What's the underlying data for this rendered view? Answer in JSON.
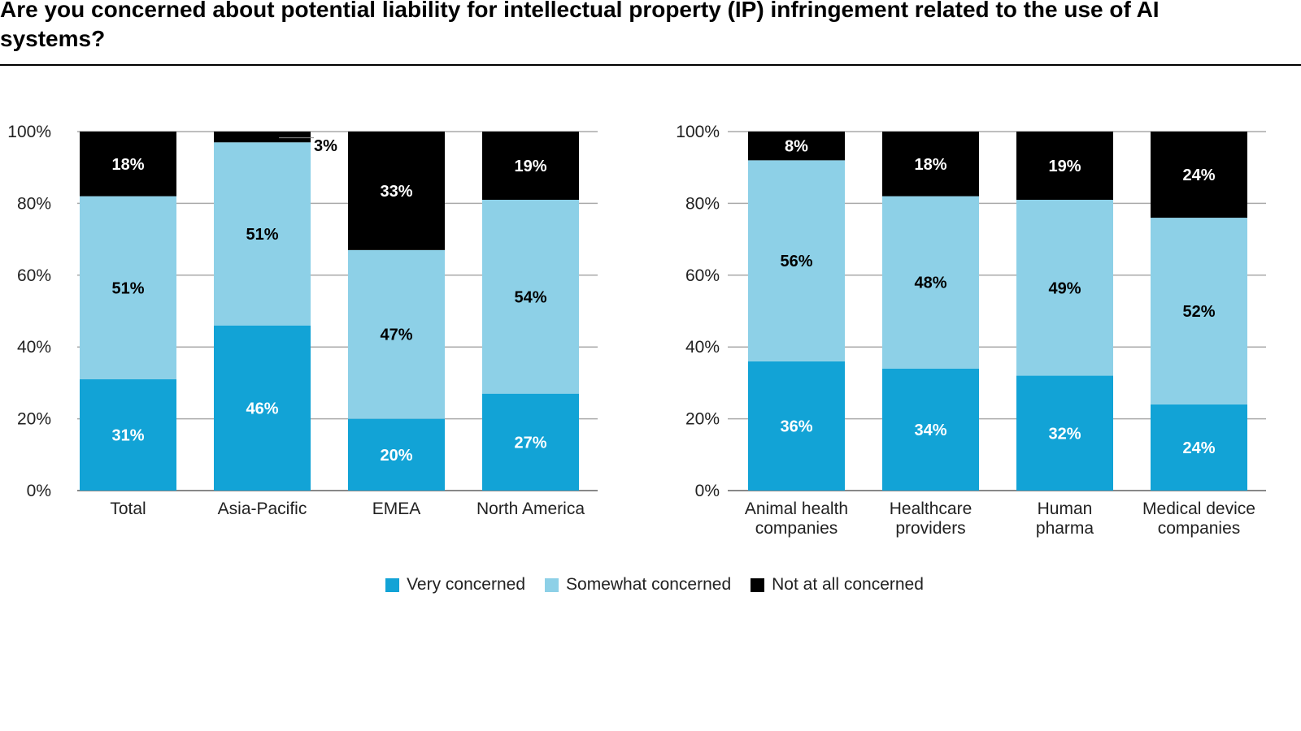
{
  "title": "Are you concerned about potential liability for intellectual property (IP) infringement related to the use of AI systems?",
  "colors": {
    "Very concerned": "#12a3d6",
    "Somewhat concerned": "#8dd0e7",
    "Not at all concerned": "#000000"
  },
  "chart_data": [
    {
      "type": "bar",
      "stacked": true,
      "categories": [
        "Total",
        "Asia-Pacific",
        "EMEA",
        "North America"
      ],
      "series": [
        {
          "name": "Very concerned",
          "values": [
            31,
            46,
            20,
            27
          ]
        },
        {
          "name": "Somewhat concerned",
          "values": [
            51,
            51,
            47,
            54
          ]
        },
        {
          "name": "Not at all concerned",
          "values": [
            18,
            3,
            33,
            19
          ]
        }
      ],
      "yticks": [
        "0%",
        "20%",
        "40%",
        "60%",
        "80%",
        "100%"
      ],
      "ylim": [
        0,
        100
      ],
      "grid": true
    },
    {
      "type": "bar",
      "stacked": true,
      "categories": [
        "Animal health companies",
        "Healthcare providers",
        "Human pharma",
        "Medical device companies"
      ],
      "series": [
        {
          "name": "Very concerned",
          "values": [
            36,
            34,
            32,
            24
          ]
        },
        {
          "name": "Somewhat concerned",
          "values": [
            56,
            48,
            49,
            52
          ]
        },
        {
          "name": "Not at all concerned",
          "values": [
            8,
            18,
            19,
            24
          ]
        }
      ],
      "yticks": [
        "0%",
        "20%",
        "40%",
        "60%",
        "80%",
        "100%"
      ],
      "ylim": [
        0,
        100
      ],
      "grid": true
    }
  ],
  "legend": {
    "position": "bottom",
    "items": [
      "Very concerned",
      "Somewhat concerned",
      "Not at all concerned"
    ]
  }
}
